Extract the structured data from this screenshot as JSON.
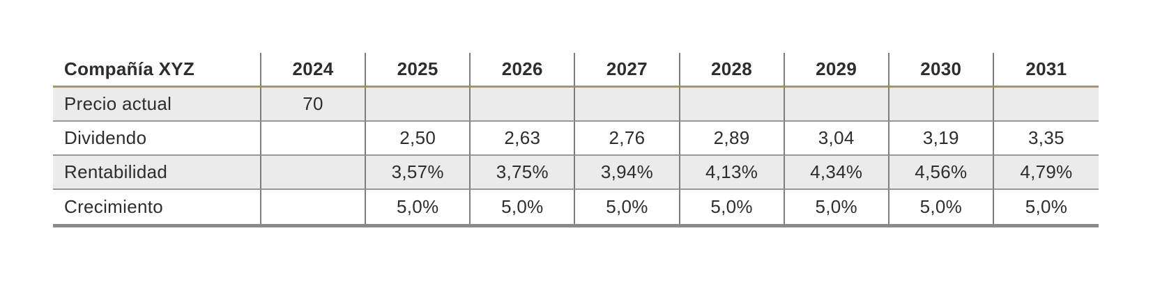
{
  "table": {
    "title": "Compañía XYZ",
    "columns": [
      "2024",
      "2025",
      "2026",
      "2027",
      "2028",
      "2029",
      "2030",
      "2031"
    ],
    "rows": [
      {
        "label": "Precio actual",
        "values": [
          "70",
          "",
          "",
          "",
          "",
          "",
          "",
          ""
        ]
      },
      {
        "label": "Dividendo",
        "values": [
          "",
          "2,50",
          "2,63",
          "2,76",
          "2,89",
          "3,04",
          "3,19",
          "3,35"
        ]
      },
      {
        "label": "Rentabilidad",
        "values": [
          "",
          "3,57%",
          "3,75%",
          "3,94%",
          "4,13%",
          "4,34%",
          "4,56%",
          "4,79%"
        ]
      },
      {
        "label": "Crecimiento",
        "values": [
          "",
          "5,0%",
          "5,0%",
          "5,0%",
          "5,0%",
          "5,0%",
          "5,0%",
          " 5,0%"
        ]
      }
    ]
  },
  "colors": {
    "text": "#2d2d2d",
    "accent_gold_rule": "#a39a5c",
    "stripe_background": "#ebebeb",
    "column_separator": "#7d7d7d",
    "row_separator": "#989898",
    "bottom_bar": "#8a8a8a",
    "page_background": "#ffffff"
  }
}
